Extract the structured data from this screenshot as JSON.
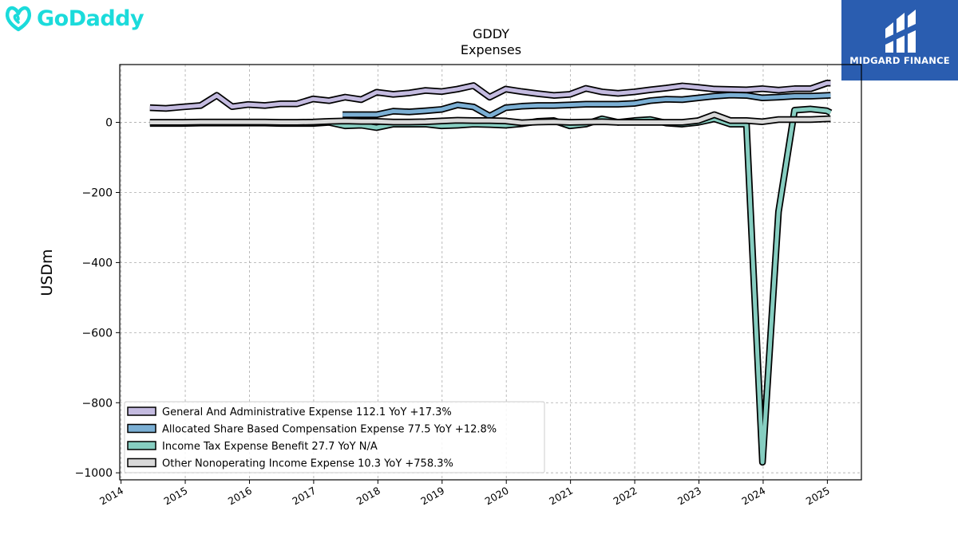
{
  "branding": {
    "left_logo_text": "GoDaddy",
    "right_logo_text": "MIDGARD FINANCE",
    "left_logo_color": "#1bdbdb",
    "right_logo_bg": "#2a5db0"
  },
  "chart_data": {
    "type": "line",
    "title": "GDDY",
    "subtitle": "Expenses",
    "ylabel": "USDm",
    "xlabel": "",
    "ylim": [
      -1020,
      165
    ],
    "xlim": [
      2013.98,
      2025.53
    ],
    "yticks": [
      0,
      -200,
      -400,
      -600,
      -800,
      -1000
    ],
    "ytick_labels": [
      "0",
      "−200",
      "−400",
      "−600",
      "−800",
      "−1000"
    ],
    "xticks": [
      2014,
      2015,
      2016,
      2017,
      2018,
      2019,
      2020,
      2021,
      2022,
      2023,
      2024,
      2025
    ],
    "xtick_labels": [
      "2014",
      "2015",
      "2016",
      "2017",
      "2018",
      "2019",
      "2020",
      "2021",
      "2022",
      "2023",
      "2024",
      "2025"
    ],
    "grid": true,
    "legend_position": "lower-left",
    "series": [
      {
        "name": "General And Administrative Expense",
        "legend": "General And Administrative Expense  112.1 YoY +17.3%",
        "color": "#c4bbe0",
        "x": [
          2014.45,
          2014.7,
          2014.95,
          2015.24,
          2015.49,
          2015.73,
          2015.98,
          2016.24,
          2016.49,
          2016.74,
          2016.99,
          2017.24,
          2017.49,
          2017.74,
          2017.98,
          2018.24,
          2018.49,
          2018.74,
          2018.99,
          2019.24,
          2019.49,
          2019.74,
          2019.99,
          2020.24,
          2020.49,
          2020.74,
          2020.99,
          2021.24,
          2021.49,
          2021.74,
          2021.99,
          2022.24,
          2022.49,
          2022.74,
          2022.99,
          2023.24,
          2023.49,
          2023.74,
          2023.99,
          2024.24,
          2024.49,
          2024.74,
          2024.99,
          2025.05
        ],
        "y": [
          42,
          40,
          44,
          48,
          77,
          45,
          51,
          48,
          53,
          53,
          67,
          62,
          72,
          65,
          86,
          80,
          84,
          91,
          88,
          95,
          105,
          72,
          95,
          88,
          82,
          77,
          80,
          97,
          87,
          83,
          87,
          93,
          98,
          104,
          100,
          95,
          94,
          93,
          96,
          92,
          96,
          96,
          112,
          112.1
        ]
      },
      {
        "name": "Allocated Share Based Compensation Expense",
        "legend": "Allocated Share Based Compensation Expense  77.5 YoY +12.8%",
        "color": "#7bafd4",
        "x": [
          2017.45,
          2017.74,
          2017.98,
          2018.24,
          2018.49,
          2018.74,
          2018.99,
          2019.24,
          2019.49,
          2019.74,
          2019.99,
          2020.24,
          2020.49,
          2020.74,
          2020.99,
          2021.24,
          2021.49,
          2021.74,
          2021.99,
          2022.24,
          2022.49,
          2022.74,
          2022.99,
          2023.24,
          2023.49,
          2023.74,
          2023.99,
          2024.24,
          2024.49,
          2024.74,
          2024.99,
          2025.05
        ],
        "y": [
          22,
          22,
          22,
          32,
          30,
          33,
          37,
          50,
          44,
          18,
          42,
          46,
          48,
          48,
          50,
          52,
          52,
          52,
          54,
          62,
          66,
          65,
          70,
          75,
          78,
          77,
          70,
          72,
          75,
          75,
          77,
          77.5
        ]
      },
      {
        "name": "Income Tax Expense Benefit",
        "legend": "Income Tax Expense Benefit  27.7 YoY N/A",
        "color": "#86cec1",
        "x": [
          2014.45,
          2014.7,
          2014.95,
          2015.24,
          2015.49,
          2015.73,
          2015.98,
          2016.24,
          2016.49,
          2016.74,
          2016.99,
          2017.24,
          2017.49,
          2017.74,
          2017.98,
          2018.24,
          2018.49,
          2018.74,
          2018.99,
          2019.24,
          2019.49,
          2019.74,
          2019.99,
          2020.24,
          2020.49,
          2020.74,
          2020.99,
          2021.24,
          2021.49,
          2021.74,
          2021.99,
          2022.24,
          2022.49,
          2022.74,
          2022.99,
          2023.24,
          2023.49,
          2023.74,
          2023.99,
          2024.24,
          2024.49,
          2024.74,
          2024.99,
          2025.05
        ],
        "y": [
          -3,
          -3,
          -3,
          -2,
          -2,
          -2,
          -2,
          -2,
          -3,
          -3,
          -3,
          0,
          -10,
          -8,
          -15,
          -5,
          -5,
          -5,
          -10,
          -8,
          -5,
          -6,
          -8,
          -4,
          3,
          5,
          -10,
          -5,
          10,
          0,
          5,
          8,
          -2,
          -5,
          0,
          10,
          -5,
          -5,
          -970,
          -255,
          35,
          38,
          33,
          27.7
        ]
      },
      {
        "name": "Other Nonoperating Income Expense",
        "legend": "Other Nonoperating Income Expense  10.3 YoY +758.3%",
        "color": "#d9d9d9",
        "x": [
          2014.45,
          2014.7,
          2014.95,
          2015.24,
          2015.49,
          2015.73,
          2015.98,
          2016.24,
          2016.49,
          2016.74,
          2016.99,
          2017.24,
          2017.49,
          2017.74,
          2017.98,
          2018.24,
          2018.49,
          2018.74,
          2018.99,
          2019.24,
          2019.49,
          2019.74,
          2019.99,
          2020.24,
          2020.49,
          2020.74,
          2020.99,
          2021.24,
          2021.49,
          2021.74,
          2021.99,
          2022.24,
          2022.49,
          2022.74,
          2022.99,
          2023.24,
          2023.49,
          2023.74,
          2023.99,
          2024.24,
          2024.49,
          2024.74,
          2024.99,
          2025.05
        ],
        "y": [
          0,
          0,
          0,
          1,
          1,
          1,
          1,
          1,
          0,
          0,
          1,
          3,
          4,
          3,
          3,
          1,
          1,
          2,
          4,
          6,
          5,
          5,
          4,
          -1,
          1,
          2,
          0,
          1,
          2,
          0,
          0,
          0,
          0,
          0,
          5,
          22,
          5,
          5,
          2,
          8,
          8,
          8,
          10,
          10.3
        ]
      }
    ]
  }
}
